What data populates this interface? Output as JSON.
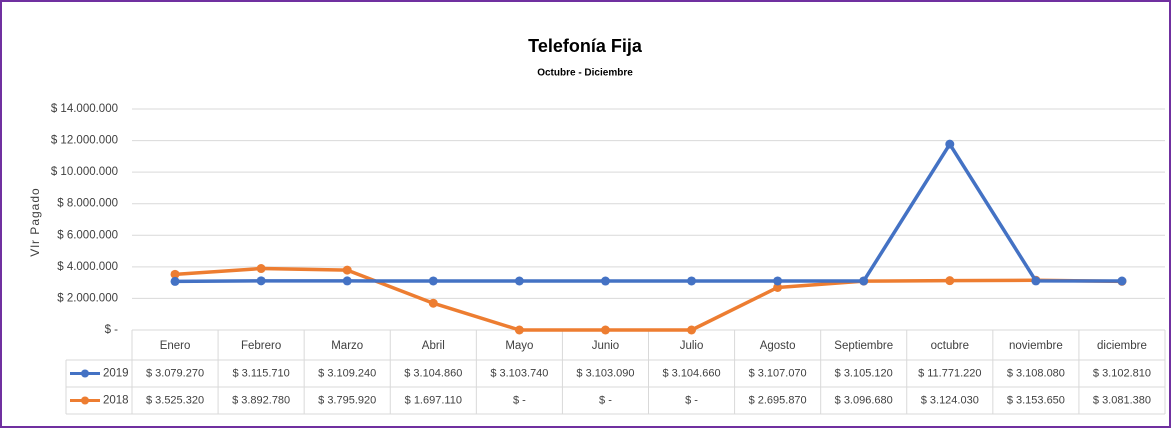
{
  "chart_data": {
    "type": "line",
    "title": "Telefonía Fija",
    "subtitle": "Octubre - Diciembre",
    "y_label": "Vlr Pagado",
    "categories": [
      "Enero",
      "Febrero",
      "Marzo",
      "Abril",
      "Mayo",
      "Junio",
      "Julio",
      "Agosto",
      "Septiembre",
      "octubre",
      "noviembre",
      "diciembre"
    ],
    "series": [
      {
        "name": "2019",
        "color": "#4472c4",
        "values": [
          3079270,
          3115710,
          3109240,
          3104860,
          3103740,
          3103090,
          3104660,
          3107070,
          3105120,
          11771220,
          3108080,
          3102810
        ],
        "value_labels": [
          "$ 3.079.270",
          "$ 3.115.710",
          "$ 3.109.240",
          "$ 3.104.860",
          "$ 3.103.740",
          "$ 3.103.090",
          "$ 3.104.660",
          "$ 3.107.070",
          "$ 3.105.120",
          "$ 11.771.220",
          "$ 3.108.080",
          "$ 3.102.810"
        ]
      },
      {
        "name": "2018",
        "color": "#ed7d31",
        "values": [
          3525320,
          3892780,
          3795920,
          1697110,
          0,
          0,
          0,
          2695870,
          3096680,
          3124030,
          3153650,
          3081380
        ],
        "value_labels": [
          "$ 3.525.320",
          "$ 3.892.780",
          "$ 3.795.920",
          "$ 1.697.110",
          "$ -",
          "$ -",
          "$ -",
          "$ 2.695.870",
          "$ 3.096.680",
          "$ 3.124.030",
          "$ 3.153.650",
          "$ 3.081.380"
        ]
      }
    ],
    "ylim": [
      0,
      14000000
    ],
    "yticks": [
      {
        "value": 0,
        "label": "$ -"
      },
      {
        "value": 2000000,
        "label": "$ 2.000.000"
      },
      {
        "value": 4000000,
        "label": "$ 4.000.000"
      },
      {
        "value": 6000000,
        "label": "$ 6.000.000"
      },
      {
        "value": 8000000,
        "label": "$ 8.000.000"
      },
      {
        "value": 10000000,
        "label": "$ 10.000.000"
      },
      {
        "value": 12000000,
        "label": "$ 12.000.000"
      },
      {
        "value": 14000000,
        "label": "$ 14.000.000"
      }
    ],
    "grid": true
  }
}
